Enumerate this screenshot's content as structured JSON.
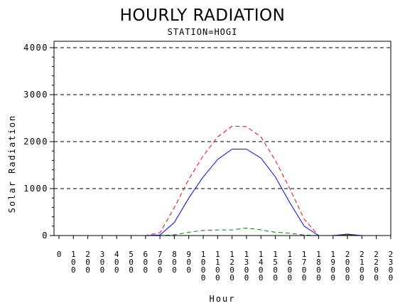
{
  "chart_data": {
    "type": "line",
    "title": "HOURLY RADIATION",
    "subtitle": "STATION=HOGI",
    "xlabel": "Hour",
    "ylabel": "Solar Radiation",
    "x": [
      0,
      100,
      200,
      300,
      400,
      500,
      600,
      700,
      800,
      900,
      1000,
      1100,
      1200,
      1300,
      1400,
      1500,
      1600,
      1700,
      1800,
      1900,
      2000,
      2100,
      2200,
      2300
    ],
    "x_tick_labels": [
      "0",
      "100",
      "200",
      "300",
      "400",
      "500",
      "600",
      "700",
      "800",
      "900",
      "1000",
      "1100",
      "1200",
      "1300",
      "1400",
      "1500",
      "1600",
      "1700",
      "1800",
      "1900",
      "2000",
      "2100",
      "2200",
      "2300"
    ],
    "ylim": [
      0,
      4000
    ],
    "y_ticks": [
      0,
      1000,
      2000,
      3000,
      4000
    ],
    "y_tick_labels": [
      "0",
      "1000",
      "2000",
      "3000",
      "4000"
    ],
    "grid": "horizontal dashed at major y ticks",
    "series": [
      {
        "color": "#ff0000",
        "style": "dashed",
        "values": [
          0,
          0,
          0,
          0,
          0,
          0,
          0,
          60,
          600,
          1200,
          1700,
          2100,
          2330,
          2320,
          2100,
          1600,
          1000,
          350,
          0,
          0,
          20,
          0,
          0,
          0
        ]
      },
      {
        "color": "#0000ff",
        "style": "solid",
        "values": [
          0,
          0,
          0,
          0,
          0,
          0,
          0,
          10,
          280,
          800,
          1250,
          1620,
          1840,
          1840,
          1650,
          1250,
          700,
          200,
          0,
          0,
          30,
          0,
          0,
          0
        ]
      },
      {
        "color": "#008000",
        "style": "dashed",
        "values": [
          0,
          0,
          0,
          0,
          0,
          0,
          0,
          0,
          15,
          70,
          110,
          120,
          120,
          160,
          120,
          70,
          50,
          10,
          0,
          0,
          10,
          0,
          0,
          0
        ]
      },
      {
        "color": "#000000",
        "style": "dashed",
        "values": [
          0,
          0,
          0,
          0,
          0,
          0,
          0,
          0,
          0,
          0,
          0,
          0,
          0,
          0,
          0,
          0,
          0,
          0,
          0,
          0,
          0,
          0,
          0,
          0
        ]
      }
    ]
  }
}
